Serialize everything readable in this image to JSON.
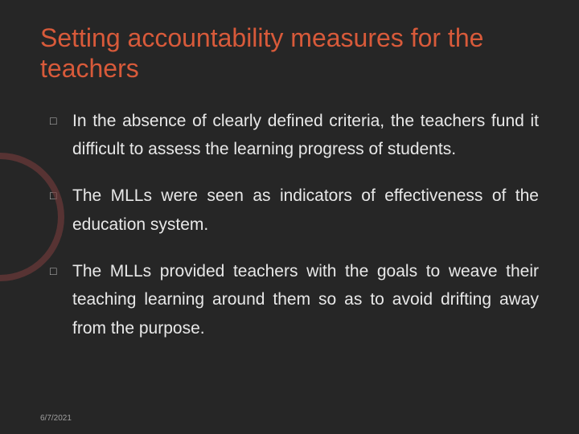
{
  "slide": {
    "title": "Setting accountability measures for the teachers",
    "bullets": [
      "In the absence of clearly defined criteria, the teachers fund it difficult to assess the learning progress of students.",
      "The MLLs were seen as indicators of effectiveness of the education system.",
      "The MLLs provided teachers with the goals to weave their teaching learning around them so as to avoid drifting away from the purpose."
    ],
    "footer_date": "6/7/2021"
  },
  "style": {
    "background_color": "#262626",
    "title_color": "#d85a3a",
    "title_fontsize": 32,
    "body_color": "#e8e8e8",
    "body_fontsize": 21,
    "bullet_marker": "□",
    "bullet_marker_color": "#c0c0c0",
    "footer_color": "#a0a0a0",
    "footer_fontsize": 10,
    "decoration_ring_color": "rgba(120,60,60,0.6)"
  }
}
